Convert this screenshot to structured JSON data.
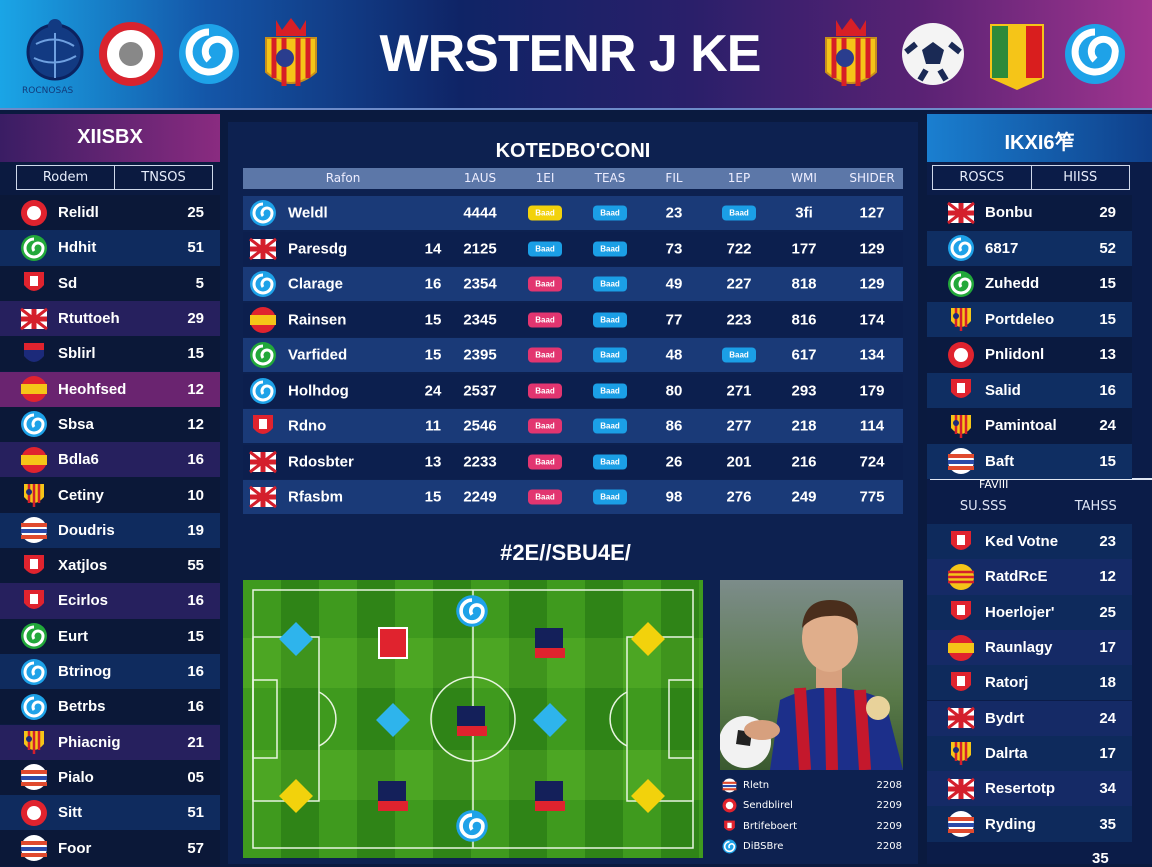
{
  "header": {
    "title": "WRSTENR J KE",
    "logo_caption": "ROCNOSAS"
  },
  "left_panel": {
    "title": "XIISBX",
    "columns": [
      "Rodem",
      "TNSOS"
    ],
    "rows": [
      {
        "name": "Relidl",
        "value": "25",
        "icon": "crest-red"
      },
      {
        "name": "Hdhit",
        "value": "51",
        "icon": "spiral-green"
      },
      {
        "name": "Sd",
        "value": "5",
        "icon": "shield-red"
      },
      {
        "name": "Rtuttoeh",
        "value": "29",
        "icon": "uk-flag"
      },
      {
        "name": "Sblirl",
        "value": "15",
        "icon": "shield-navy"
      },
      {
        "name": "Heohfsed",
        "value": "12",
        "icon": "spain-flag",
        "highlight": true
      },
      {
        "name": "Sbsa",
        "value": "12",
        "icon": "spiral-blue"
      },
      {
        "name": "Bdla6",
        "value": "16",
        "icon": "spain-flag"
      },
      {
        "name": "Cetiny",
        "value": "10",
        "icon": "catalan-shield"
      },
      {
        "name": "Doudris",
        "value": "19",
        "icon": "striped-circle"
      },
      {
        "name": "Xatjlos",
        "value": "55",
        "icon": "shield-red"
      },
      {
        "name": "Ecirlos",
        "value": "16",
        "icon": "shield-red"
      },
      {
        "name": "Eurt",
        "value": "15",
        "icon": "spiral-green"
      },
      {
        "name": "Btrinog",
        "value": "16",
        "icon": "spiral-blue"
      },
      {
        "name": "Betrbs",
        "value": "16",
        "icon": "spiral-blue"
      },
      {
        "name": "Phiacnig",
        "value": "21",
        "icon": "catalan-shield"
      },
      {
        "name": "Pialo",
        "value": "05",
        "icon": "striped-circle"
      },
      {
        "name": "Sitt",
        "value": "51",
        "icon": "crest-red"
      },
      {
        "name": "Foor",
        "value": "57",
        "icon": "striped-circle"
      }
    ]
  },
  "center_table": {
    "title": "KOTEDBO'CONI",
    "columns": [
      "Rafon",
      "1AUS",
      "1EI",
      "TEAS",
      "FIL",
      "1EP",
      "WMI",
      "SHIDER"
    ],
    "badge_label": "Baad",
    "colors": {
      "yellow": "#f2d20c",
      "blue": "#1b9fe6",
      "pink": "#e23570"
    },
    "rows": [
      {
        "name": "Weldl",
        "icon": "spiral-blue",
        "n": "",
        "a": "4444",
        "b1": "yellow",
        "b2": "blue",
        "c": "23",
        "d": "badge-blue",
        "e": "3fi",
        "f": "127"
      },
      {
        "name": "Paresdg",
        "icon": "uk-flag",
        "n": "14",
        "a": "2125",
        "b1": "blue",
        "b2": "blue",
        "c": "73",
        "d": "722",
        "e": "177",
        "f": "129"
      },
      {
        "name": "Clarage",
        "icon": "spiral-blue",
        "n": "16",
        "a": "2354",
        "b1": "pink",
        "b2": "blue",
        "c": "49",
        "d": "227",
        "e": "818",
        "f": "129"
      },
      {
        "name": "Rainsen",
        "icon": "spain-flag",
        "n": "15",
        "a": "2345",
        "b1": "pink",
        "b2": "blue",
        "c": "77",
        "d": "223",
        "e": "816",
        "f": "174"
      },
      {
        "name": "Varfided",
        "icon": "spiral-green",
        "n": "15",
        "a": "2395",
        "b1": "pink",
        "b2": "blue",
        "c": "48",
        "d": "badge-blue",
        "e": "617",
        "f": "134"
      },
      {
        "name": "Holhdog",
        "icon": "spiral-blue",
        "n": "24",
        "a": "2537",
        "b1": "pink",
        "b2": "blue",
        "c": "80",
        "d": "271",
        "e": "293",
        "f": "179"
      },
      {
        "name": "Rdno",
        "icon": "shield-red",
        "n": "11",
        "a": "2546",
        "b1": "pink",
        "b2": "blue",
        "c": "86",
        "d": "277",
        "e": "218",
        "f": "114"
      },
      {
        "name": "Rdosbter",
        "icon": "uk-flag",
        "n": "13",
        "a": "2233",
        "b1": "pink",
        "b2": "blue",
        "c": "26",
        "d": "201",
        "e": "216",
        "f": "724"
      },
      {
        "name": "Rfasbm",
        "icon": "uk-flag",
        "n": "15",
        "a": "2249",
        "b1": "pink",
        "b2": "blue",
        "c": "98",
        "d": "276",
        "e": "249",
        "f": "775"
      }
    ]
  },
  "lineup": {
    "title": "#2E//SBU4E/"
  },
  "player_card": {
    "rows": [
      {
        "name": "Rletn",
        "value": "2208",
        "icon": "striped-circle"
      },
      {
        "name": "Sendblirel",
        "value": "2209",
        "icon": "crest-red"
      },
      {
        "name": "Brtifeboert",
        "value": "2209",
        "icon": "shield-red"
      },
      {
        "name": "DiBSBre",
        "value": "2208",
        "icon": "spiral-blue"
      }
    ]
  },
  "right_panel": {
    "title": "IKXI6笮",
    "columns": [
      "ROSCS",
      "HIISS"
    ],
    "rows": [
      {
        "name": "Bonbu",
        "value": "29",
        "icon": "uk-flag"
      },
      {
        "name": "6817",
        "value": "52",
        "icon": "spiral-blue"
      },
      {
        "name": "Zuhedd",
        "value": "15",
        "icon": "spiral-green"
      },
      {
        "name": "Portdeleo",
        "value": "15",
        "icon": "catalan-shield"
      },
      {
        "name": "Pnlidonl",
        "value": "13",
        "icon": "crest-red"
      },
      {
        "name": "Salid",
        "value": "16",
        "icon": "shield-red"
      },
      {
        "name": "Pamintoal",
        "value": "24",
        "icon": "catalan-shield"
      },
      {
        "name": "Baft",
        "value": "15",
        "icon": "striped-circle"
      }
    ],
    "sub_label": "FAVIII",
    "sub_columns": [
      "SU.SSS",
      "TAHSS"
    ],
    "rows2": [
      {
        "name": "Ked Votne",
        "value": "23",
        "icon": "shield-red"
      },
      {
        "name": "RatdRcE",
        "value": "12",
        "icon": "catalan-circle"
      },
      {
        "name": "Hoerlojer'",
        "value": "25",
        "icon": "shield-red"
      },
      {
        "name": "Raunlagy",
        "value": "17",
        "icon": "spain-flag"
      },
      {
        "name": "Ratorj",
        "value": "18",
        "icon": "shield-red"
      },
      {
        "name": "Bydrt",
        "value": "24",
        "icon": "uk-flag"
      },
      {
        "name": "Dalrta",
        "value": "17",
        "icon": "catalan-shield"
      },
      {
        "name": "Resertotp",
        "value": "34",
        "icon": "uk-flag"
      },
      {
        "name": "Ryding",
        "value": "35",
        "icon": "striped-circle"
      }
    ],
    "trailing_value": "35"
  }
}
